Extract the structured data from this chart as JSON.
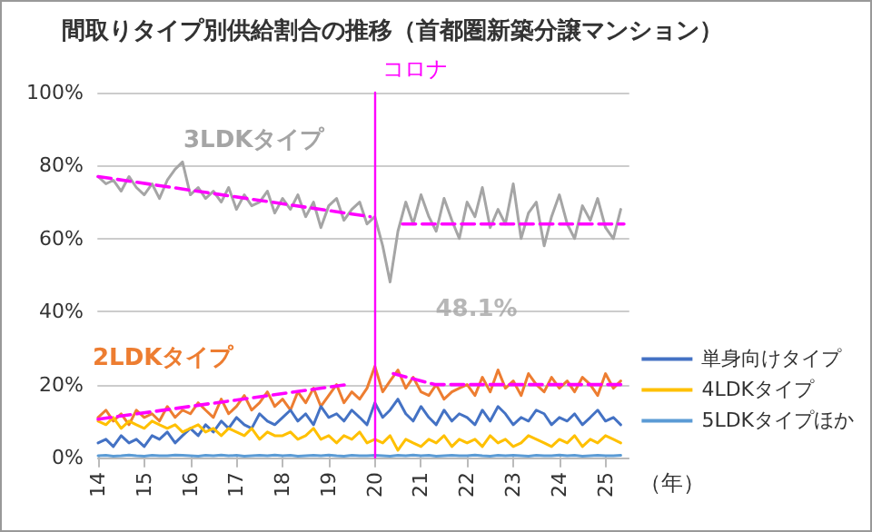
{
  "chart_data": {
    "type": "line",
    "title": "間取りタイプ別供給割合の推移（首都圏新築分譲マンション）",
    "xlabel": "（年）",
    "x": [
      14,
      14.17,
      14.33,
      14.5,
      14.67,
      14.83,
      15,
      15.17,
      15.33,
      15.5,
      15.67,
      15.83,
      16,
      16.17,
      16.33,
      16.5,
      16.67,
      16.83,
      17,
      17.17,
      17.33,
      17.5,
      17.67,
      17.83,
      18,
      18.17,
      18.33,
      18.5,
      18.67,
      18.83,
      19,
      19.17,
      19.33,
      19.5,
      19.67,
      19.83,
      20,
      20.17,
      20.33,
      20.5,
      20.67,
      20.83,
      21,
      21.17,
      21.33,
      21.5,
      21.67,
      21.83,
      22,
      22.17,
      22.33,
      22.5,
      22.67,
      22.83,
      23,
      23.17,
      23.33,
      23.5,
      23.67,
      23.83,
      24,
      24.17,
      24.33,
      24.5,
      24.67,
      24.83,
      25,
      25.17,
      25.33
    ],
    "series": [
      {
        "color": "#a5a5a5",
        "values": [
          77,
          75,
          76,
          73,
          77,
          74,
          72,
          75,
          71,
          76,
          79,
          81,
          72,
          74,
          71,
          73,
          70,
          74,
          68,
          72,
          69,
          70,
          73,
          67,
          71,
          68,
          72,
          66,
          70,
          63,
          69,
          71,
          65,
          68,
          70,
          64,
          66,
          58,
          48.1,
          62,
          70,
          64,
          72,
          66,
          62,
          71,
          65,
          60,
          70,
          66,
          74,
          63,
          68,
          64,
          75,
          60,
          67,
          70,
          58,
          66,
          72,
          64,
          60,
          69,
          65,
          71,
          63,
          60,
          68
        ]
      },
      {
        "color": "#ed7d31",
        "values": [
          11,
          13,
          10,
          12,
          9,
          13,
          11,
          12,
          10,
          14,
          11,
          13,
          12,
          15,
          13,
          11,
          16,
          12,
          14,
          17,
          13,
          15,
          18,
          14,
          16,
          13,
          18,
          15,
          19,
          14,
          17,
          20,
          15,
          18,
          16,
          19,
          25,
          18,
          21,
          24,
          19,
          22,
          18,
          17,
          20,
          16,
          18,
          19,
          20,
          17,
          22,
          18,
          24,
          19,
          21,
          17,
          23,
          20,
          18,
          22,
          19,
          21,
          18,
          22,
          20,
          17,
          23,
          19,
          21
        ]
      },
      {
        "name": "単身向けタイプ",
        "color": "#4472c4",
        "values": [
          4,
          5,
          3,
          6,
          4,
          5,
          3,
          6,
          5,
          7,
          4,
          6,
          8,
          6,
          9,
          7,
          10,
          8,
          11,
          9,
          8,
          12,
          10,
          9,
          11,
          13,
          10,
          12,
          9,
          14,
          11,
          12,
          10,
          13,
          11,
          9,
          15,
          11,
          13,
          16,
          12,
          10,
          14,
          11,
          9,
          13,
          10,
          12,
          11,
          9,
          13,
          10,
          14,
          12,
          9,
          11,
          10,
          13,
          12,
          9,
          11,
          10,
          12,
          9,
          11,
          13,
          10,
          11,
          9
        ]
      },
      {
        "name": "4LDKタイプ",
        "color": "#ffc000",
        "values": [
          10,
          9,
          11,
          8,
          10,
          9,
          8,
          10,
          9,
          8,
          9,
          7,
          8,
          9,
          7,
          8,
          6,
          8,
          7,
          6,
          8,
          5,
          7,
          6,
          6,
          7,
          5,
          6,
          8,
          5,
          6,
          4,
          6,
          5,
          7,
          4,
          5,
          4,
          6,
          2,
          5,
          4,
          3,
          5,
          4,
          6,
          3,
          5,
          4,
          5,
          3,
          6,
          4,
          5,
          3,
          4,
          6,
          5,
          4,
          3,
          5,
          4,
          6,
          3,
          5,
          4,
          6,
          5,
          4
        ]
      },
      {
        "name": "5LDKタイプほか",
        "color": "#5b9bd5",
        "values": [
          0.5,
          0.6,
          0.4,
          0.5,
          0.7,
          0.5,
          0.4,
          0.6,
          0.5,
          0.5,
          0.7,
          0.6,
          0.5,
          0.4,
          0.6,
          0.5,
          0.7,
          0.5,
          0.6,
          0.4,
          0.5,
          0.6,
          0.5,
          0.7,
          0.5,
          0.6,
          0.4,
          0.5,
          0.6,
          0.5,
          0.7,
          0.5,
          0.4,
          0.6,
          0.5,
          0.5,
          0.6,
          0.5,
          0.4,
          0.6,
          0.5,
          0.7,
          0.5,
          0.6,
          0.4,
          0.5,
          0.6,
          0.5,
          0.5,
          0.7,
          0.5,
          0.4,
          0.6,
          0.5,
          0.6,
          0.5,
          0.4,
          0.6,
          0.5,
          0.5,
          0.7,
          0.5,
          0.6,
          0.4,
          0.5,
          0.6,
          0.5,
          0.5,
          0.6
        ]
      },
      {
        "type": "line",
        "color": "#ff00ff",
        "line_style": "dashed",
        "x": [
          14,
          19.9
        ],
        "values": [
          77,
          66
        ]
      },
      {
        "type": "line",
        "color": "#ff00ff",
        "line_style": "dashed",
        "x": [
          20.6,
          25.4
        ],
        "values": [
          64,
          64
        ]
      },
      {
        "type": "line",
        "color": "#ff00ff",
        "line_style": "dashed",
        "x": [
          14,
          19.4
        ],
        "values": [
          10.5,
          20
        ]
      },
      {
        "type": "line",
        "color": "#ff00ff",
        "line_style": "dashed",
        "x": [
          20.4,
          21.3,
          25.4
        ],
        "values": [
          23,
          20,
          20
        ]
      }
    ],
    "annotations": [
      "3LDKタイプ",
      "2LDKタイプ",
      {
        "text": "48.1%",
        "x": 20.33,
        "y": 48.1
      }
    ],
    "ref_lines": [
      {
        "axis": "x",
        "value": 20,
        "label": "コロナ",
        "color": "#ff00ff"
      }
    ],
    "xlim": [
      14,
      25.5
    ],
    "xticks": [
      14,
      15,
      16,
      17,
      18,
      19,
      20,
      21,
      22,
      23,
      24,
      25
    ],
    "ylim": [
      0,
      100
    ],
    "yticks": [
      {
        "value": 0,
        "label": "0%"
      },
      {
        "value": 20,
        "label": "20%"
      },
      {
        "value": 40,
        "label": "40%"
      },
      {
        "value": 60,
        "label": "60%"
      },
      {
        "value": 80,
        "label": "80%"
      },
      {
        "value": 100,
        "label": "100%"
      }
    ],
    "grid": "y",
    "legend": "right",
    "marker": "none"
  }
}
